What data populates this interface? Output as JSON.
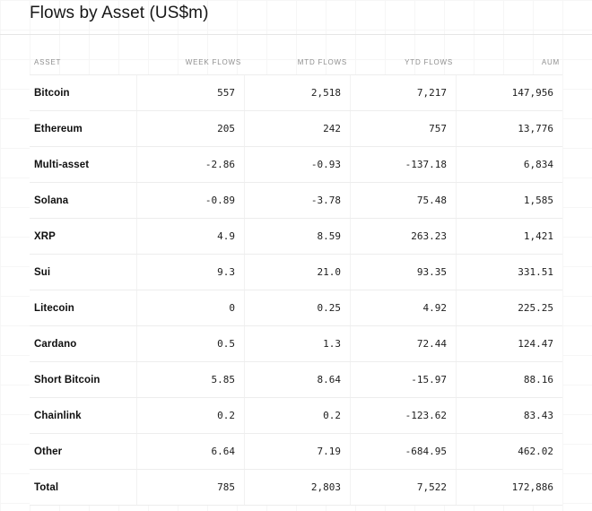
{
  "title": "Flows by Asset (US$m)",
  "table": {
    "columns": [
      "ASSET",
      "WEEK FLOWS",
      "MTD FLOWS",
      "YTD FLOWS",
      "AUM"
    ],
    "rows": [
      {
        "cells": [
          "Bitcoin",
          "557",
          "2,518",
          "7,217",
          "147,956"
        ]
      },
      {
        "cells": [
          "Ethereum",
          "205",
          "242",
          "757",
          "13,776"
        ]
      },
      {
        "cells": [
          "Multi-asset",
          "-2.86",
          "-0.93",
          "-137.18",
          "6,834"
        ]
      },
      {
        "cells": [
          "Solana",
          "-0.89",
          "-3.78",
          "75.48",
          "1,585"
        ]
      },
      {
        "cells": [
          "XRP",
          "4.9",
          "8.59",
          "263.23",
          "1,421"
        ]
      },
      {
        "cells": [
          "Sui",
          "9.3",
          "21.0",
          "93.35",
          "331.51"
        ]
      },
      {
        "cells": [
          "Litecoin",
          "0",
          "0.25",
          "4.92",
          "225.25"
        ]
      },
      {
        "cells": [
          "Cardano",
          "0.5",
          "1.3",
          "72.44",
          "124.47"
        ]
      },
      {
        "cells": [
          "Short Bitcoin",
          "5.85",
          "8.64",
          "-15.97",
          "88.16"
        ]
      },
      {
        "cells": [
          "Chainlink",
          "0.2",
          "0.2",
          "-123.62",
          "83.43"
        ]
      },
      {
        "cells": [
          "Other",
          "6.64",
          "7.19",
          "-684.95",
          "462.02"
        ]
      },
      {
        "cells": [
          "Total",
          "785",
          "2,803",
          "7,522",
          "172,886"
        ],
        "is_total": true
      }
    ]
  },
  "colors": {
    "background": "#ffffff",
    "grid_line": "#f6f6f6",
    "top_rule": "#e5e5e5",
    "row_border": "#ededed",
    "column_border": "#f2f2f2",
    "title_text": "#171717",
    "header_text": "#8f8f8f",
    "asset_text": "#0f0f0f",
    "number_text": "#1d1d1d"
  },
  "chart_data": {
    "type": "table",
    "title": "Flows by Asset (US$m)",
    "columns": [
      "ASSET",
      "WEEK FLOWS",
      "MTD FLOWS",
      "YTD FLOWS",
      "AUM"
    ],
    "rows": [
      {
        "asset": "Bitcoin",
        "week_flows": 557,
        "mtd_flows": 2518,
        "ytd_flows": 7217,
        "aum": 147956
      },
      {
        "asset": "Ethereum",
        "week_flows": 205,
        "mtd_flows": 242,
        "ytd_flows": 757,
        "aum": 13776
      },
      {
        "asset": "Multi-asset",
        "week_flows": -2.86,
        "mtd_flows": -0.93,
        "ytd_flows": -137.18,
        "aum": 6834
      },
      {
        "asset": "Solana",
        "week_flows": -0.89,
        "mtd_flows": -3.78,
        "ytd_flows": 75.48,
        "aum": 1585
      },
      {
        "asset": "XRP",
        "week_flows": 4.9,
        "mtd_flows": 8.59,
        "ytd_flows": 263.23,
        "aum": 1421
      },
      {
        "asset": "Sui",
        "week_flows": 9.3,
        "mtd_flows": 21.0,
        "ytd_flows": 93.35,
        "aum": 331.51
      },
      {
        "asset": "Litecoin",
        "week_flows": 0,
        "mtd_flows": 0.25,
        "ytd_flows": 4.92,
        "aum": 225.25
      },
      {
        "asset": "Cardano",
        "week_flows": 0.5,
        "mtd_flows": 1.3,
        "ytd_flows": 72.44,
        "aum": 124.47
      },
      {
        "asset": "Short Bitcoin",
        "week_flows": 5.85,
        "mtd_flows": 8.64,
        "ytd_flows": -15.97,
        "aum": 88.16
      },
      {
        "asset": "Chainlink",
        "week_flows": 0.2,
        "mtd_flows": 0.2,
        "ytd_flows": -123.62,
        "aum": 83.43
      },
      {
        "asset": "Other",
        "week_flows": 6.64,
        "mtd_flows": 7.19,
        "ytd_flows": -684.95,
        "aum": 462.02
      },
      {
        "asset": "Total",
        "week_flows": 785,
        "mtd_flows": 2803,
        "ytd_flows": 7522,
        "aum": 172886
      }
    ]
  }
}
